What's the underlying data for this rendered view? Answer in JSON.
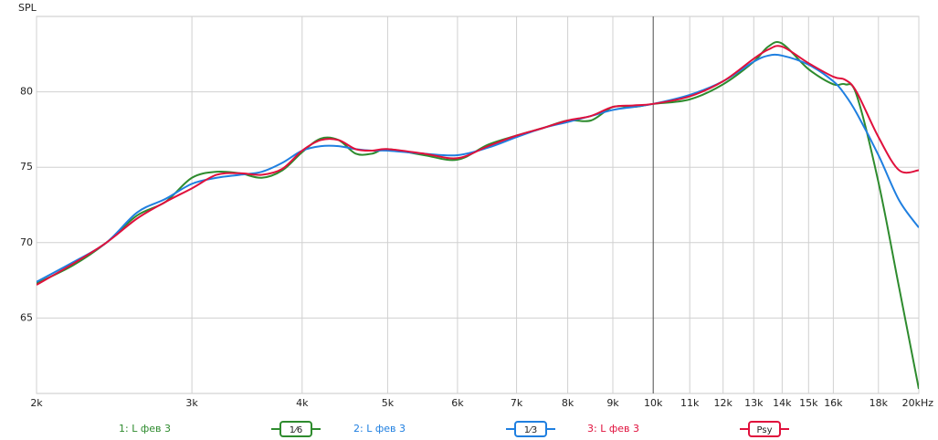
{
  "chart_data": {
    "type": "line",
    "y_label": "SPL",
    "log_x": true,
    "grid": true,
    "cursor": 10000,
    "xlim": [
      2000,
      20000
    ],
    "ylim": [
      60,
      85
    ],
    "xticks": [
      {
        "value": 2000,
        "label": "2k"
      },
      {
        "value": 3000,
        "label": "3k"
      },
      {
        "value": 4000,
        "label": "4k"
      },
      {
        "value": 5000,
        "label": "5k"
      },
      {
        "value": 6000,
        "label": "6k"
      },
      {
        "value": 7000,
        "label": "7k"
      },
      {
        "value": 8000,
        "label": "8k"
      },
      {
        "value": 9000,
        "label": "9k"
      },
      {
        "value": 10000,
        "label": "10k"
      },
      {
        "value": 11000,
        "label": "11k"
      },
      {
        "value": 12000,
        "label": "12k"
      },
      {
        "value": 13000,
        "label": "13k"
      },
      {
        "value": 14000,
        "label": "14k"
      },
      {
        "value": 15000,
        "label": "15k"
      },
      {
        "value": 16000,
        "label": "16k"
      },
      {
        "value": 18000,
        "label": "18k"
      },
      {
        "value": 20000,
        "label": "20kHz"
      }
    ],
    "yticks": [
      65,
      70,
      75,
      80
    ],
    "x": [
      2000,
      2200,
      2400,
      2600,
      2800,
      3000,
      3200,
      3400,
      3600,
      3800,
      4000,
      4200,
      4400,
      4600,
      4800,
      5000,
      5500,
      6000,
      6500,
      7000,
      7500,
      8000,
      8500,
      9000,
      9500,
      10000,
      11000,
      12000,
      13000,
      13500,
      14000,
      15000,
      16000,
      16500,
      17000,
      18000,
      19000,
      20000
    ],
    "series": [
      {
        "name": "1: L фев 3",
        "smoothing": "1⁄6",
        "color": "#2e8b2e",
        "values": [
          67.3,
          68.5,
          70.0,
          71.8,
          72.7,
          74.3,
          74.7,
          74.6,
          74.3,
          74.8,
          76.0,
          76.9,
          76.8,
          75.9,
          75.9,
          76.2,
          75.8,
          75.5,
          76.5,
          77.1,
          77.6,
          78.1,
          78.1,
          79.0,
          79.0,
          79.2,
          79.5,
          80.5,
          82.0,
          83.0,
          83.2,
          81.5,
          80.5,
          80.5,
          79.8,
          74.0,
          67.0,
          60.3
        ]
      },
      {
        "name": "2: L фев 3",
        "smoothing": "1⁄3",
        "color": "#1f7fe0",
        "values": [
          67.4,
          68.7,
          70.0,
          72.0,
          72.9,
          73.9,
          74.3,
          74.5,
          74.7,
          75.3,
          76.1,
          76.4,
          76.4,
          76.2,
          76.1,
          76.1,
          75.9,
          75.8,
          76.3,
          77.0,
          77.6,
          78.0,
          78.4,
          78.8,
          79.0,
          79.2,
          79.8,
          80.7,
          82.0,
          82.4,
          82.4,
          81.8,
          80.7,
          79.8,
          78.6,
          75.8,
          72.8,
          71.0
        ]
      },
      {
        "name": "3: L фев 3",
        "smoothing": "Psy",
        "color": "#e0103c",
        "values": [
          67.2,
          68.6,
          70.0,
          71.6,
          72.7,
          73.6,
          74.5,
          74.6,
          74.5,
          74.9,
          76.1,
          76.8,
          76.8,
          76.2,
          76.1,
          76.2,
          75.9,
          75.6,
          76.4,
          77.1,
          77.6,
          78.1,
          78.4,
          79.0,
          79.1,
          79.2,
          79.7,
          80.7,
          82.2,
          82.8,
          83.0,
          81.9,
          81.0,
          80.8,
          80.0,
          77.0,
          74.8,
          74.8
        ]
      }
    ]
  }
}
